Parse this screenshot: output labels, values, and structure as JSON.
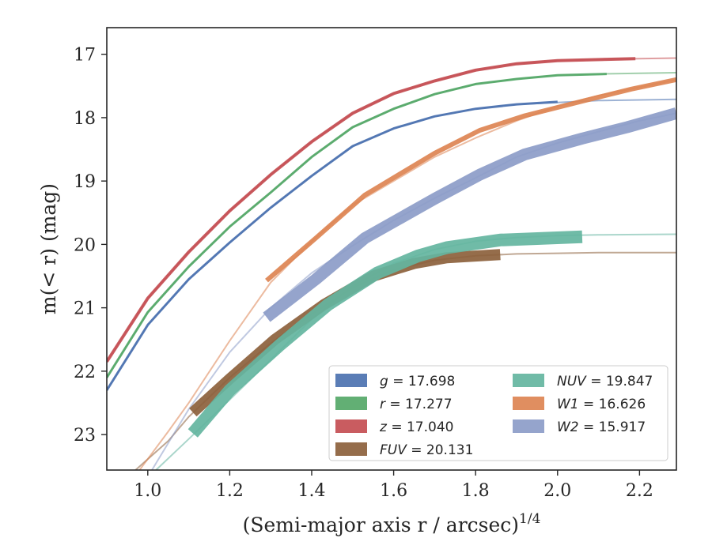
{
  "chart_data": {
    "type": "line",
    "title": "",
    "xlabel_main": "(Semi-major axis r / arcsec)",
    "xlabel_sup": "1/4",
    "ylabel": "m(< r) (mag)",
    "xlim": [
      0.9,
      2.29
    ],
    "ylim": [
      23.56,
      16.58
    ],
    "y_inverted": true,
    "xticks": [
      1.0,
      1.2,
      1.4,
      1.6,
      1.8,
      2.0,
      2.2
    ],
    "xtick_labels": [
      "1.0",
      "1.2",
      "1.4",
      "1.6",
      "1.8",
      "2.0",
      "2.2"
    ],
    "yticks": [
      17,
      18,
      19,
      20,
      21,
      22,
      23
    ],
    "ytick_labels": [
      "17",
      "18",
      "19",
      "20",
      "21",
      "22",
      "23"
    ],
    "grid": false,
    "legend_position": "lower-right",
    "series": [
      {
        "key": "g",
        "name": "g = 17.698",
        "color": "#4c72b0",
        "band_width": 3,
        "model": [
          [
            0.9,
            22.3
          ],
          [
            1.0,
            21.27
          ],
          [
            1.1,
            20.55
          ],
          [
            1.2,
            19.97
          ],
          [
            1.3,
            19.42
          ],
          [
            1.4,
            18.92
          ],
          [
            1.5,
            18.45
          ],
          [
            1.6,
            18.17
          ],
          [
            1.7,
            17.98
          ],
          [
            1.8,
            17.86
          ],
          [
            1.9,
            17.79
          ],
          [
            2.0,
            17.76
          ],
          [
            2.1,
            17.73
          ],
          [
            2.2,
            17.72
          ],
          [
            2.29,
            17.71
          ]
        ],
        "data": [
          [
            0.9,
            22.3
          ],
          [
            1.0,
            21.27
          ],
          [
            1.1,
            20.55
          ],
          [
            1.2,
            19.97
          ],
          [
            1.3,
            19.42
          ],
          [
            1.4,
            18.92
          ],
          [
            1.5,
            18.45
          ],
          [
            1.6,
            18.17
          ],
          [
            1.7,
            17.98
          ],
          [
            1.8,
            17.86
          ],
          [
            1.9,
            17.79
          ],
          [
            2.0,
            17.75
          ]
        ]
      },
      {
        "key": "r",
        "name": "r = 17.277",
        "color": "#55a868",
        "band_width": 3,
        "model": [
          [
            0.9,
            22.1
          ],
          [
            1.0,
            21.07
          ],
          [
            1.1,
            20.35
          ],
          [
            1.2,
            19.72
          ],
          [
            1.3,
            19.18
          ],
          [
            1.4,
            18.62
          ],
          [
            1.5,
            18.15
          ],
          [
            1.6,
            17.86
          ],
          [
            1.7,
            17.63
          ],
          [
            1.8,
            17.47
          ],
          [
            1.9,
            17.39
          ],
          [
            2.0,
            17.33
          ],
          [
            2.1,
            17.31
          ],
          [
            2.2,
            17.3
          ],
          [
            2.29,
            17.29
          ]
        ],
        "data": [
          [
            0.9,
            22.1
          ],
          [
            1.0,
            21.07
          ],
          [
            1.1,
            20.35
          ],
          [
            1.2,
            19.72
          ],
          [
            1.3,
            19.18
          ],
          [
            1.4,
            18.62
          ],
          [
            1.5,
            18.15
          ],
          [
            1.6,
            17.86
          ],
          [
            1.7,
            17.63
          ],
          [
            1.8,
            17.47
          ],
          [
            1.9,
            17.39
          ],
          [
            2.0,
            17.33
          ],
          [
            2.12,
            17.31
          ]
        ]
      },
      {
        "key": "z",
        "name": "z = 17.040",
        "color": "#c44e52",
        "band_width": 4,
        "model": [
          [
            0.9,
            21.85
          ],
          [
            1.0,
            20.85
          ],
          [
            1.1,
            20.12
          ],
          [
            1.2,
            19.47
          ],
          [
            1.3,
            18.9
          ],
          [
            1.4,
            18.38
          ],
          [
            1.5,
            17.93
          ],
          [
            1.6,
            17.62
          ],
          [
            1.7,
            17.42
          ],
          [
            1.8,
            17.25
          ],
          [
            1.9,
            17.15
          ],
          [
            2.0,
            17.1
          ],
          [
            2.1,
            17.08
          ],
          [
            2.2,
            17.07
          ],
          [
            2.29,
            17.06
          ]
        ],
        "data": [
          [
            0.9,
            21.85
          ],
          [
            1.0,
            20.85
          ],
          [
            1.1,
            20.12
          ],
          [
            1.2,
            19.47
          ],
          [
            1.3,
            18.9
          ],
          [
            1.4,
            18.38
          ],
          [
            1.5,
            17.93
          ],
          [
            1.6,
            17.62
          ],
          [
            1.7,
            17.42
          ],
          [
            1.8,
            17.25
          ],
          [
            1.9,
            17.15
          ],
          [
            2.0,
            17.1
          ],
          [
            2.19,
            17.07
          ]
        ]
      },
      {
        "key": "FUV",
        "name": "FUV = 20.131",
        "color": "#8c613c",
        "band_width": 14,
        "model": [
          [
            0.97,
            23.56
          ],
          [
            1.05,
            23.1
          ],
          [
            1.1,
            22.72
          ],
          [
            1.2,
            22.1
          ],
          [
            1.3,
            21.56
          ],
          [
            1.4,
            21.1
          ],
          [
            1.5,
            20.68
          ],
          [
            1.6,
            20.4
          ],
          [
            1.7,
            20.25
          ],
          [
            1.8,
            20.18
          ],
          [
            1.9,
            20.15
          ],
          [
            2.0,
            20.14
          ],
          [
            2.1,
            20.13
          ],
          [
            2.29,
            20.13
          ]
        ],
        "data": [
          [
            1.11,
            22.65
          ],
          [
            1.2,
            22.12
          ],
          [
            1.31,
            21.5
          ],
          [
            1.43,
            20.95
          ],
          [
            1.55,
            20.5
          ],
          [
            1.65,
            20.3
          ],
          [
            1.73,
            20.21
          ],
          [
            1.86,
            20.16
          ]
        ]
      },
      {
        "key": "NUV",
        "name": "NUV = 19.847",
        "color": "#64b5a0",
        "band_width": 16,
        "model": [
          [
            1.02,
            23.56
          ],
          [
            1.1,
            23.07
          ],
          [
            1.2,
            22.45
          ],
          [
            1.3,
            21.82
          ],
          [
            1.4,
            21.18
          ],
          [
            1.5,
            20.66
          ],
          [
            1.6,
            20.3
          ],
          [
            1.7,
            20.08
          ],
          [
            1.8,
            19.95
          ],
          [
            1.9,
            19.89
          ],
          [
            2.0,
            19.86
          ],
          [
            2.1,
            19.85
          ],
          [
            2.29,
            19.84
          ]
        ],
        "data": [
          [
            1.11,
            22.98
          ],
          [
            1.2,
            22.3
          ],
          [
            1.32,
            21.6
          ],
          [
            1.44,
            20.95
          ],
          [
            1.56,
            20.45
          ],
          [
            1.66,
            20.18
          ],
          [
            1.73,
            20.05
          ],
          [
            1.86,
            19.93
          ],
          [
            2.06,
            19.88
          ]
        ]
      },
      {
        "key": "W1",
        "name": "W1 = 16.626",
        "color": "#dd8452",
        "band_width": 6,
        "model": [
          [
            0.98,
            23.56
          ],
          [
            1.05,
            22.95
          ],
          [
            1.1,
            22.5
          ],
          [
            1.2,
            21.52
          ],
          [
            1.3,
            20.6
          ],
          [
            1.4,
            19.95
          ],
          [
            1.5,
            19.38
          ],
          [
            1.6,
            19.0
          ],
          [
            1.7,
            18.62
          ],
          [
            1.8,
            18.32
          ],
          [
            1.9,
            18.05
          ],
          [
            2.0,
            17.82
          ],
          [
            2.1,
            17.65
          ],
          [
            2.2,
            17.52
          ],
          [
            2.29,
            17.4
          ]
        ],
        "data": [
          [
            1.29,
            20.57
          ],
          [
            1.41,
            19.9
          ],
          [
            1.53,
            19.22
          ],
          [
            1.7,
            18.56
          ],
          [
            1.81,
            18.2
          ],
          [
            1.92,
            17.97
          ],
          [
            2.06,
            17.74
          ],
          [
            2.18,
            17.55
          ],
          [
            2.29,
            17.4
          ]
        ]
      },
      {
        "key": "W2",
        "name": "W2 = 15.917",
        "color": "#8c9cc8",
        "band_width": 15,
        "model": [
          [
            1.01,
            23.56
          ],
          [
            1.1,
            22.6
          ],
          [
            1.2,
            21.7
          ],
          [
            1.3,
            21.0
          ],
          [
            1.4,
            20.45
          ],
          [
            1.5,
            20.02
          ],
          [
            1.6,
            19.62
          ],
          [
            1.7,
            19.27
          ],
          [
            1.8,
            18.95
          ],
          [
            1.9,
            18.62
          ],
          [
            2.0,
            18.4
          ],
          [
            2.1,
            18.22
          ],
          [
            2.2,
            18.05
          ],
          [
            2.29,
            17.93
          ]
        ],
        "data": [
          [
            1.29,
            21.15
          ],
          [
            1.41,
            20.55
          ],
          [
            1.53,
            19.9
          ],
          [
            1.7,
            19.28
          ],
          [
            1.81,
            18.9
          ],
          [
            1.92,
            18.58
          ],
          [
            2.06,
            18.33
          ],
          [
            2.17,
            18.15
          ],
          [
            2.29,
            17.93
          ]
        ]
      }
    ],
    "legend_layout": [
      [
        "g",
        "r",
        "z",
        "FUV"
      ],
      [
        "NUV",
        "W1",
        "W2"
      ]
    ]
  }
}
